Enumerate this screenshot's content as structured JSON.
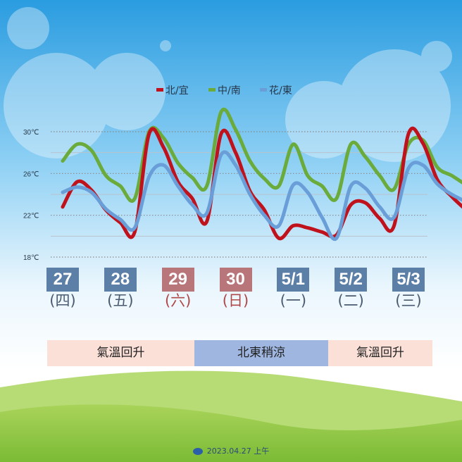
{
  "chart_data": {
    "type": "line",
    "y_ticks": [
      "30℃",
      "26℃",
      "22℃",
      "18℃"
    ],
    "y_tick_values": [
      30,
      26,
      22,
      18
    ],
    "ylim": [
      18,
      31.5
    ],
    "x": [
      0,
      0.25,
      0.5,
      0.75,
      1,
      1.25,
      1.5,
      1.75,
      2,
      2.25,
      2.5,
      2.75,
      3,
      3.25,
      3.5,
      3.75,
      4,
      4.25,
      4.5,
      4.75,
      5,
      5.25,
      5.5,
      5.75,
      6,
      6.25,
      6.5,
      6.75,
      7
    ],
    "series": [
      {
        "name": "北/宜",
        "color": "#c0121c",
        "values": [
          22.8,
          25.2,
          24.4,
          22.5,
          21.3,
          20.4,
          29.8,
          28.5,
          25.2,
          23.6,
          21.4,
          29.8,
          28.0,
          24.3,
          22.5,
          19.8,
          21.0,
          20.8,
          20.4,
          20.1,
          23.0,
          23.2,
          21.7,
          21.0,
          29.8,
          28.9,
          25.4,
          23.8,
          22.5
        ]
      },
      {
        "name": "中/南",
        "color": "#6aab3c",
        "values": [
          27.2,
          28.8,
          28.2,
          25.8,
          24.8,
          23.6,
          30.0,
          29.4,
          27.0,
          25.6,
          24.8,
          31.9,
          30.2,
          27.2,
          25.5,
          24.8,
          28.8,
          25.8,
          24.8,
          23.6,
          28.8,
          27.6,
          25.8,
          24.5,
          28.8,
          29.2,
          26.6,
          25.8,
          24.9
        ]
      },
      {
        "name": "花/東",
        "color": "#6a9ed8",
        "values": [
          24.2,
          24.7,
          24.2,
          22.6,
          21.6,
          20.8,
          25.7,
          26.8,
          24.8,
          23.0,
          22.2,
          27.8,
          26.8,
          24.0,
          22.0,
          21.0,
          24.9,
          24.2,
          21.8,
          19.8,
          24.8,
          24.6,
          22.8,
          21.8,
          26.5,
          26.8,
          25.0,
          24.0,
          23.3
        ]
      }
    ]
  },
  "days": [
    {
      "date": "27",
      "weekday": "(四)",
      "weekend": false
    },
    {
      "date": "28",
      "weekday": "(五)",
      "weekend": false
    },
    {
      "date": "29",
      "weekday": "(六)",
      "weekend": true
    },
    {
      "date": "30",
      "weekday": "(日)",
      "weekend": true
    },
    {
      "date": "5/1",
      "weekday": "(一)",
      "weekend": false
    },
    {
      "date": "5/2",
      "weekday": "(二)",
      "weekend": false
    },
    {
      "date": "5/3",
      "weekday": "(三)",
      "weekend": false
    }
  ],
  "bands": [
    {
      "label": "氣溫回升",
      "tone": "warm"
    },
    {
      "label": "北東稍涼",
      "tone": "cool"
    },
    {
      "label": "氣溫回升",
      "tone": "warm"
    }
  ],
  "footer": {
    "date": "2023.04.27 上午"
  },
  "colors": {
    "sky_top": "#2a9ce0",
    "sky_bottom": "#ffffff",
    "grass": "#8cc63f"
  }
}
